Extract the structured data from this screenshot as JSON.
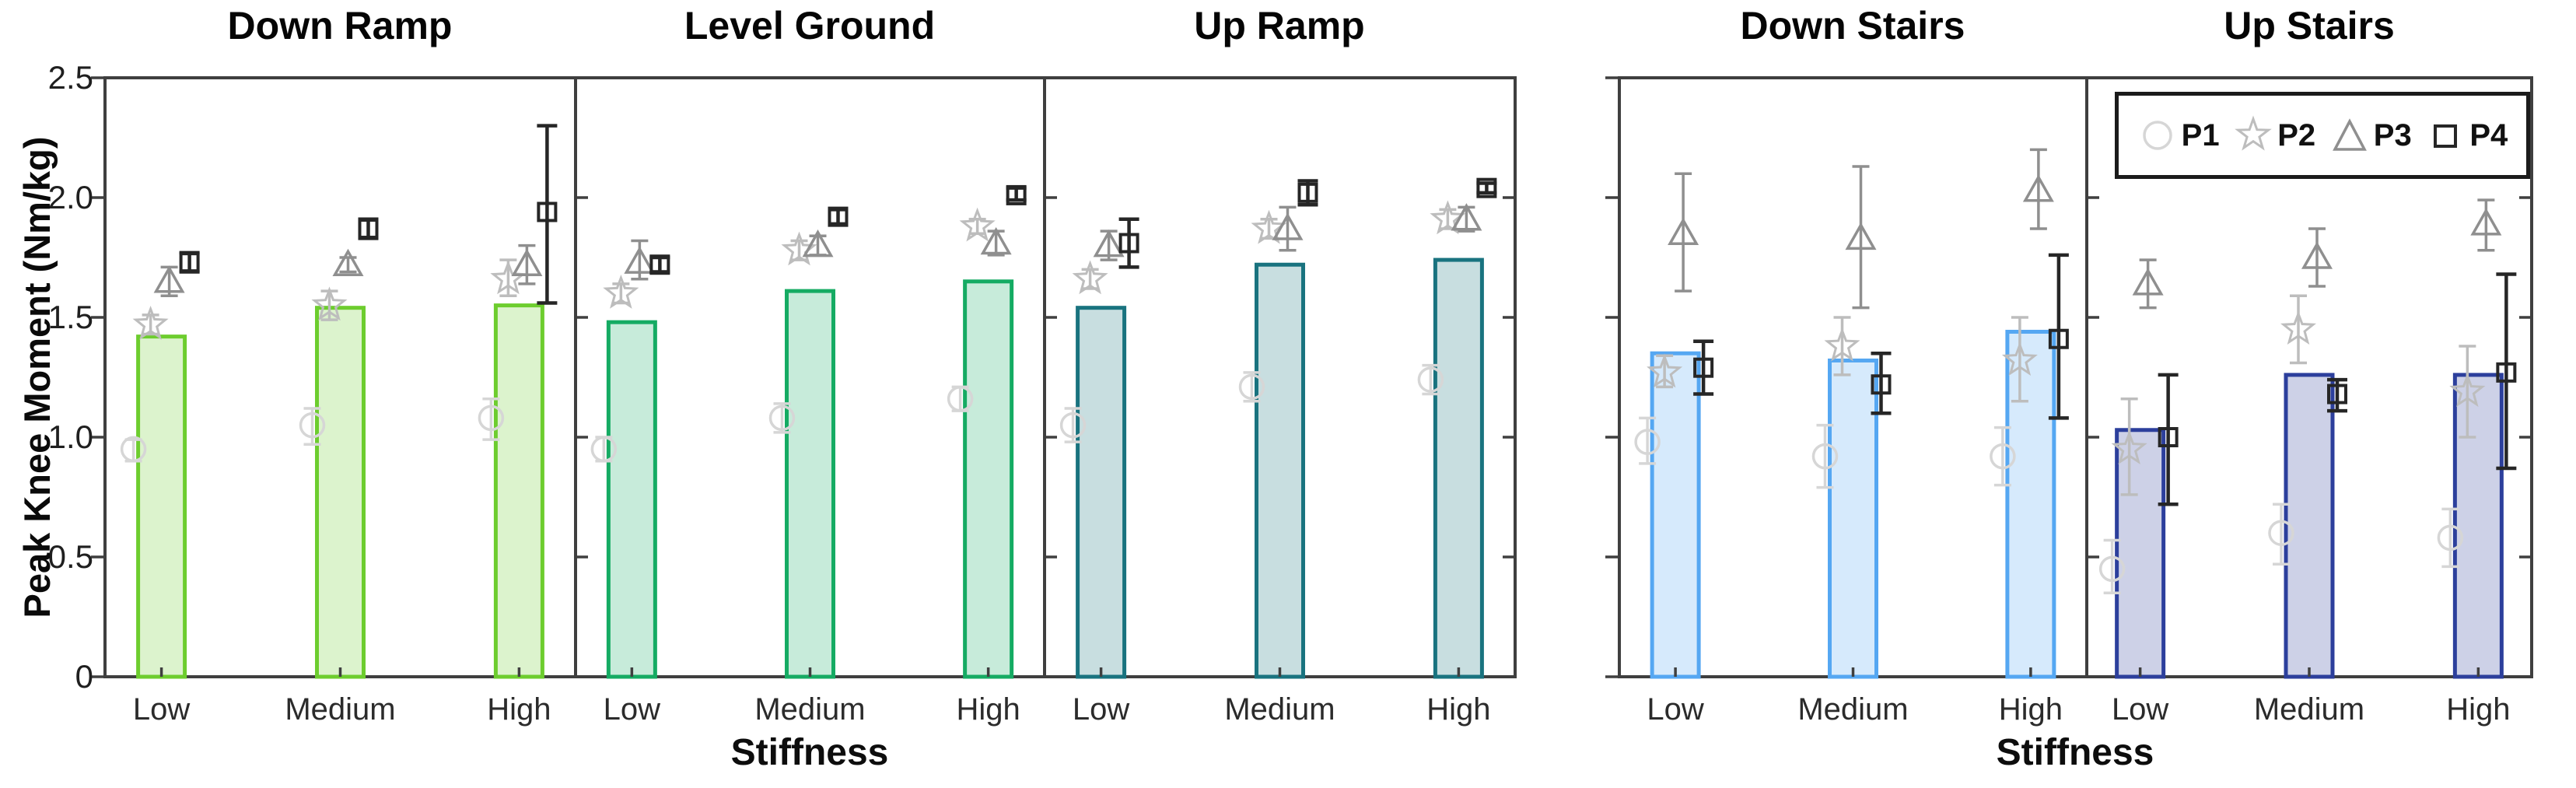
{
  "chart_data": {
    "type": "bar",
    "title": "",
    "ylabel": "Peak Knee Moment (Nm/kg)",
    "xlabel": "Stiffness",
    "ylim": [
      0,
      2.5
    ],
    "y_ticks": [
      "0",
      "0.5",
      "1.0",
      "1.5",
      "2.0",
      "2.5"
    ],
    "categories": [
      "Low",
      "Medium",
      "High"
    ],
    "grid": false,
    "legend_position": "top-right-of-up-stairs-panel",
    "participants": [
      {
        "id": "P1",
        "shape": "circle",
        "color": "#d6d6d6"
      },
      {
        "id": "P2",
        "shape": "star",
        "color": "#bdbdbd"
      },
      {
        "id": "P3",
        "shape": "triangle",
        "color": "#8f8f8f"
      },
      {
        "id": "P4",
        "shape": "square",
        "color": "#262626"
      }
    ],
    "panels": [
      {
        "title": "Down Ramp",
        "bar_color": "#6dcd2e",
        "bars": [
          1.42,
          1.54,
          1.55
        ],
        "series": {
          "P1": [
            [
              0.95,
              0.9,
              0.99
            ],
            [
              1.05,
              0.97,
              1.12
            ],
            [
              1.08,
              0.99,
              1.16
            ]
          ],
          "P2": [
            [
              1.47,
              1.43,
              1.51
            ],
            [
              1.55,
              1.49,
              1.61
            ],
            [
              1.66,
              1.59,
              1.74
            ]
          ],
          "P3": [
            [
              1.65,
              1.59,
              1.71
            ],
            [
              1.72,
              1.69,
              1.75
            ],
            [
              1.72,
              1.64,
              1.8
            ]
          ],
          "P4": [
            [
              1.73,
              1.69,
              1.77
            ],
            [
              1.87,
              1.83,
              1.91
            ],
            [
              1.94,
              1.56,
              2.3
            ]
          ]
        }
      },
      {
        "title": "Level Ground",
        "bar_color": "#15ab63",
        "bars": [
          1.48,
          1.61,
          1.65
        ],
        "series": {
          "P1": [
            [
              0.95,
              0.9,
              1.0
            ],
            [
              1.08,
              1.02,
              1.14
            ],
            [
              1.16,
              1.11,
              1.21
            ]
          ],
          "P2": [
            [
              1.6,
              1.56,
              1.64
            ],
            [
              1.78,
              1.74,
              1.82
            ],
            [
              1.88,
              1.85,
              1.91
            ]
          ],
          "P3": [
            [
              1.73,
              1.66,
              1.82
            ],
            [
              1.8,
              1.76,
              1.84
            ],
            [
              1.81,
              1.76,
              1.86
            ]
          ],
          "P4": [
            [
              1.72,
              1.69,
              1.75
            ],
            [
              1.92,
              1.89,
              1.95
            ],
            [
              2.01,
              1.99,
              2.04
            ]
          ]
        }
      },
      {
        "title": "Up Ramp",
        "bar_color": "#19737f",
        "bars": [
          1.54,
          1.72,
          1.74
        ],
        "series": {
          "P1": [
            [
              1.05,
              0.98,
              1.12
            ],
            [
              1.21,
              1.15,
              1.27
            ],
            [
              1.24,
              1.18,
              1.3
            ]
          ],
          "P2": [
            [
              1.66,
              1.62,
              1.7
            ],
            [
              1.87,
              1.83,
              1.91
            ],
            [
              1.91,
              1.87,
              1.95
            ]
          ],
          "P3": [
            [
              1.8,
              1.74,
              1.86
            ],
            [
              1.87,
              1.78,
              1.96
            ],
            [
              1.91,
              1.86,
              1.96
            ]
          ],
          "P4": [
            [
              1.81,
              1.71,
              1.91
            ],
            [
              2.02,
              1.97,
              2.07
            ],
            [
              2.04,
              2.02,
              2.06
            ]
          ]
        }
      },
      {
        "title": "Down Stairs",
        "bar_color": "#55a7f2",
        "bars": [
          1.35,
          1.32,
          1.44
        ],
        "series": {
          "P1": [
            [
              0.98,
              0.89,
              1.08
            ],
            [
              0.92,
              0.79,
              1.05
            ],
            [
              0.92,
              0.8,
              1.04
            ]
          ],
          "P2": [
            [
              1.27,
              1.21,
              1.34
            ],
            [
              1.38,
              1.26,
              1.5
            ],
            [
              1.32,
              1.15,
              1.5
            ]
          ],
          "P3": [
            [
              1.85,
              1.61,
              2.1
            ],
            [
              1.83,
              1.54,
              2.13
            ],
            [
              2.03,
              1.87,
              2.2
            ]
          ],
          "P4": [
            [
              1.29,
              1.18,
              1.4
            ],
            [
              1.22,
              1.1,
              1.35
            ],
            [
              1.41,
              1.08,
              1.76
            ]
          ]
        }
      },
      {
        "title": "Up Stairs",
        "bar_color": "#2c3f9c",
        "bars": [
          1.03,
          1.26,
          1.26
        ],
        "series": {
          "P1": [
            [
              0.45,
              0.35,
              0.57
            ],
            [
              0.6,
              0.47,
              0.72
            ],
            [
              0.58,
              0.46,
              0.7
            ]
          ],
          "P2": [
            [
              0.95,
              0.76,
              1.16
            ],
            [
              1.45,
              1.31,
              1.59
            ],
            [
              1.19,
              1.0,
              1.38
            ]
          ],
          "P3": [
            [
              1.64,
              1.54,
              1.74
            ],
            [
              1.75,
              1.63,
              1.87
            ],
            [
              1.89,
              1.78,
              1.99
            ]
          ],
          "P4": [
            [
              1.0,
              0.72,
              1.26
            ],
            [
              1.18,
              1.11,
              1.24
            ],
            [
              1.27,
              0.87,
              1.68
            ]
          ]
        }
      }
    ]
  }
}
